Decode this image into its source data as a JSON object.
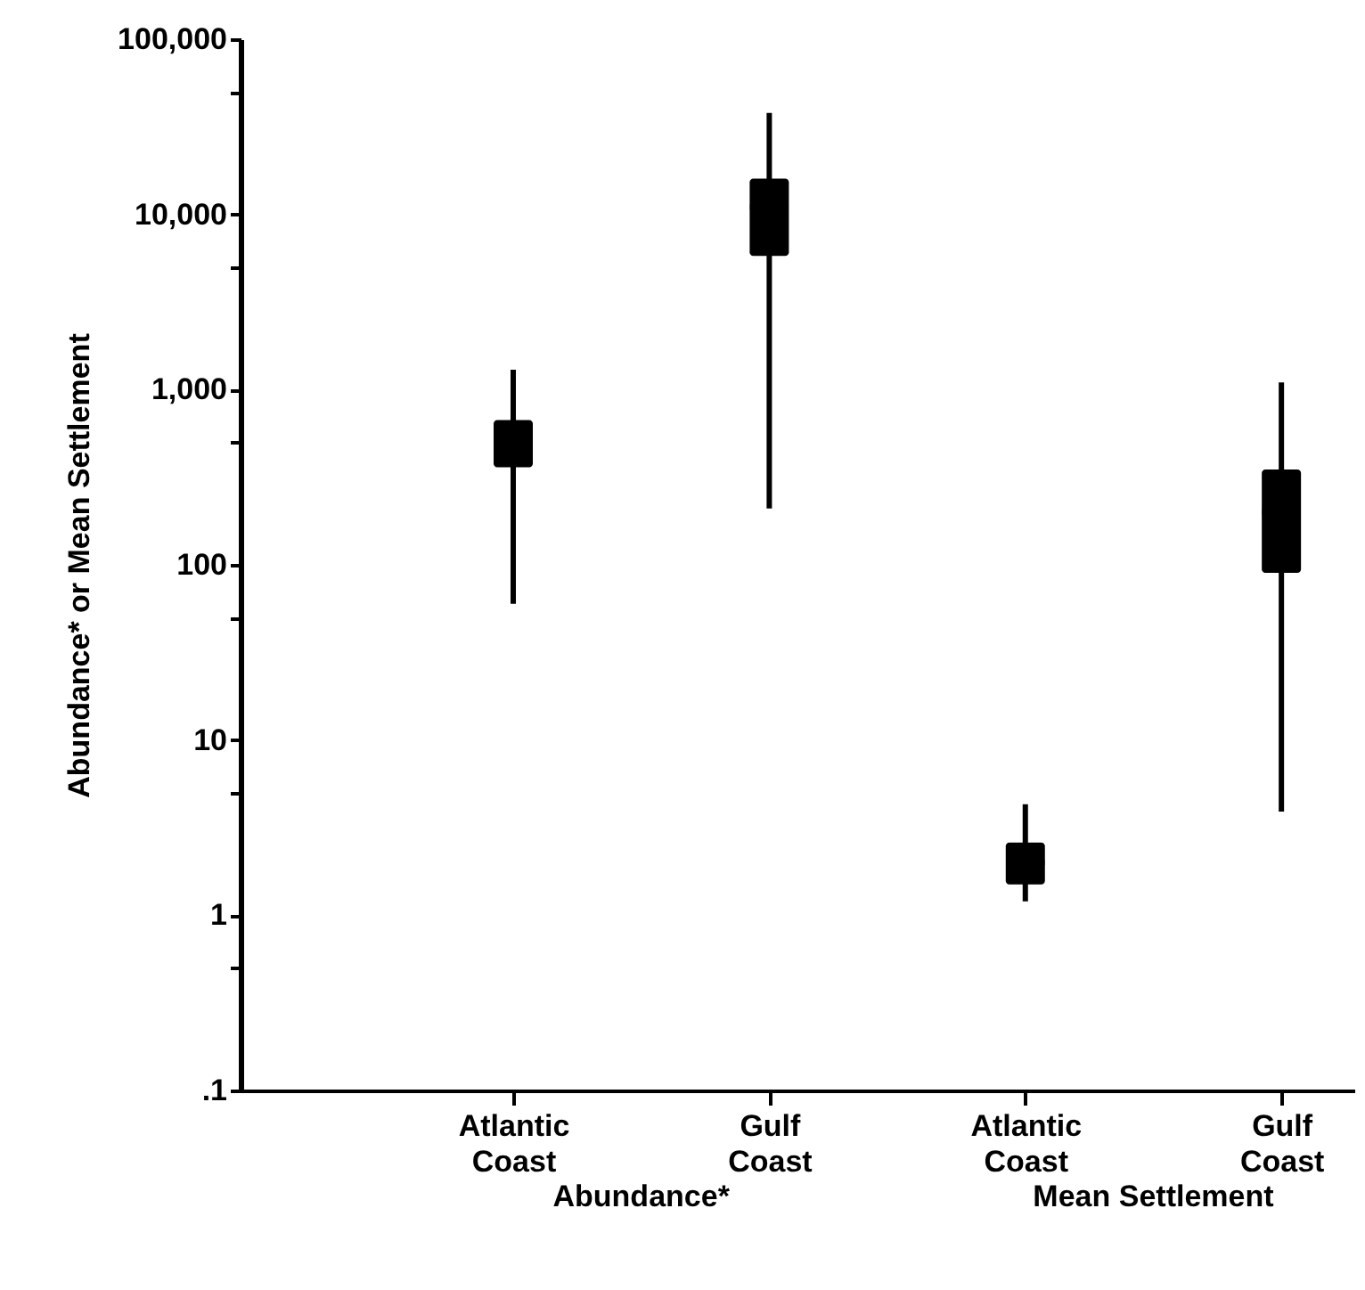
{
  "chart_data": {
    "type": "box",
    "ylabel": "Abundance* or Mean Settlement",
    "categories": [
      "Atlantic Coast",
      "Gulf Coast",
      "Atlantic Coast",
      "Gulf Coast"
    ],
    "log": true,
    "ylim": [
      0.1,
      100000
    ],
    "yticks": [
      {
        "value": 100000,
        "label": "100,000"
      },
      {
        "value": 50000,
        "label": null
      },
      {
        "value": 10000,
        "label": "10,000"
      },
      {
        "value": 5000,
        "label": null
      },
      {
        "value": 1000,
        "label": "1,000"
      },
      {
        "value": 500,
        "label": null
      },
      100,
      {
        "value": 50,
        "label": null
      },
      10,
      {
        "value": 5,
        "label": null
      },
      1,
      {
        "value": 0.5,
        "label": null
      },
      {
        "value": 0.1,
        "label": ".1"
      }
    ],
    "grid": false,
    "series": [
      {
        "color": "#000000",
        "boxes": [
          {
            "low": 60,
            "q1": 360,
            "median": 530,
            "q3": 670,
            "high": 1300
          },
          {
            "low": 210,
            "q1": 5800,
            "median": 11000,
            "q3": 16000,
            "high": 38000
          },
          {
            "low": 1.2,
            "q1": 1.5,
            "median": 2,
            "q3": 2.6,
            "high": 4.3
          },
          {
            "low": 3.9,
            "q1": 90,
            "median": 200,
            "q3": 350,
            "high": 1100
          }
        ]
      }
    ],
    "annotations": [
      "Abundance*",
      "Mean Settlement"
    ]
  }
}
